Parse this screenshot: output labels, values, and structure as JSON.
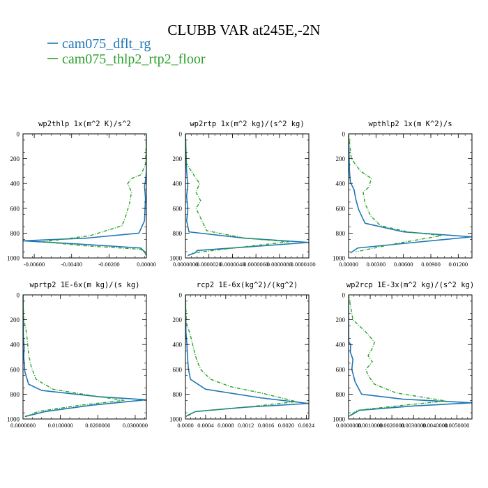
{
  "title": "CLUBB VAR at245E,-2N",
  "legend": [
    {
      "name": "cam075_dflt_rg",
      "color": "#1f77b4"
    },
    {
      "name": "cam075_thlp2_rtp2_floor",
      "color": "#2ca02c"
    }
  ],
  "chart_data": [
    {
      "type": "line",
      "title": "wp2thlp   1x(m^2 K)/s^2",
      "xlim": [
        -0.0066,
        0.0
      ],
      "ylim": [
        1000,
        0
      ],
      "xticks": [
        -0.006,
        -0.004,
        -0.002,
        0.0
      ],
      "xtick_labels": [
        "-0.00600",
        "-0.00400",
        "-0.00200",
        "0.00000"
      ],
      "yticks": [
        0,
        200,
        400,
        600,
        800,
        1000
      ],
      "ytick_labels": [
        "0",
        "200",
        "400",
        "600",
        "800",
        "1000"
      ],
      "series": [
        {
          "name": "cam075_dflt_rg",
          "color": "#1f77b4",
          "dashed": false,
          "x": [
            0,
            0,
            -5e-05,
            -0.0001,
            -5e-05,
            -0.0001,
            -0.0004,
            -0.0032,
            -0.0066,
            -0.0034,
            -0.0003,
            -0.0001,
            0
          ],
          "y": [
            0,
            300,
            380,
            420,
            520,
            700,
            800,
            840,
            862,
            890,
            920,
            950,
            980
          ]
        },
        {
          "name": "cam075_thlp2_rtp2_floor",
          "color": "#2ca02c",
          "dashed": true,
          "x": [
            0,
            -5e-05,
            -0.0003,
            -0.0008,
            -0.001,
            -0.0008,
            -0.0009,
            -0.0011,
            -0.0013,
            -0.003,
            -0.0055,
            -0.0035,
            -0.0003,
            0
          ],
          "y": [
            0,
            250,
            330,
            360,
            400,
            470,
            560,
            660,
            740,
            820,
            870,
            900,
            930,
            970
          ]
        }
      ]
    },
    {
      "type": "line",
      "title": "wp2rtp   1x(m^2 kg)/(s^2 kg)",
      "xlim": [
        0.0,
        1.05e-05
      ],
      "ylim": [
        1000,
        0
      ],
      "xticks": [
        0.0,
        2e-06,
        4e-06,
        6e-06,
        8e-06,
        1e-05
      ],
      "xtick_labels": [
        "0.0000000",
        "0.0000020",
        "0.0000040",
        "0.0000060",
        "0.0000080",
        "0.0000100"
      ],
      "yticks": [
        0,
        200,
        400,
        600,
        800,
        1000
      ],
      "ytick_labels": [
        "0",
        "200",
        "400",
        "600",
        "800",
        "1000"
      ],
      "series": [
        {
          "name": "cam075_dflt_rg",
          "color": "#1f77b4",
          "dashed": false,
          "x": [
            0,
            1e-07,
            2e-07,
            1e-07,
            2e-07,
            1e-07,
            3e-07,
            5e-06,
            1.05e-05,
            5.5e-06,
            1e-06,
            8e-07,
            2e-07
          ],
          "y": [
            0,
            300,
            420,
            500,
            620,
            700,
            790,
            840,
            875,
            910,
            940,
            960,
            980
          ]
        },
        {
          "name": "cam075_thlp2_rtp2_floor",
          "color": "#2ca02c",
          "dashed": true,
          "x": [
            0,
            1e-07,
            7e-07,
            1.2e-06,
            9e-07,
            1.3e-06,
            9e-07,
            1.3e-06,
            1.8e-06,
            5e-06,
            8.8e-06,
            5e-06,
            6e-07
          ],
          "y": [
            0,
            240,
            330,
            400,
            470,
            540,
            600,
            680,
            780,
            840,
            870,
            910,
            960
          ]
        }
      ]
    },
    {
      "type": "line",
      "title": "wpthlp2   1x(m K^2)/s",
      "xlim": [
        0.0,
        0.0135
      ],
      "ylim": [
        1000,
        0
      ],
      "xticks": [
        0.0,
        0.003,
        0.006,
        0.009,
        0.012
      ],
      "xtick_labels": [
        "0.00000",
        "0.00300",
        "0.00600",
        "0.00900",
        "0.01200"
      ],
      "yticks": [
        0,
        200,
        400,
        600,
        800,
        1000
      ],
      "ytick_labels": [
        "0",
        "200",
        "400",
        "600",
        "800",
        "1000"
      ],
      "series": [
        {
          "name": "cam075_dflt_rg",
          "color": "#1f77b4",
          "dashed": false,
          "x": [
            0,
            0.0001,
            0.0002,
            0.0006,
            0.0008,
            0.0011,
            0.0018,
            0.006,
            0.0135,
            0.0065,
            0.001,
            0.0002
          ],
          "y": [
            0,
            300,
            390,
            450,
            530,
            610,
            720,
            790,
            830,
            880,
            920,
            960
          ]
        },
        {
          "name": "cam075_thlp2_rtp2_floor",
          "color": "#2ca02c",
          "dashed": true,
          "x": [
            0,
            0.0003,
            0.0013,
            0.0025,
            0.0022,
            0.0016,
            0.0018,
            0.0024,
            0.0035,
            0.0065,
            0.0102,
            0.0055,
            0.0008
          ],
          "y": [
            0,
            200,
            300,
            360,
            430,
            470,
            560,
            660,
            740,
            790,
            820,
            880,
            950
          ]
        }
      ]
    },
    {
      "type": "line",
      "title": "wprtp2   1E-6x(m kg)/(s kg)",
      "xlim": [
        0.0,
        0.033
      ],
      "ylim": [
        1000,
        0
      ],
      "xticks": [
        0.0,
        0.01,
        0.02,
        0.03
      ],
      "xtick_labels": [
        "0.0000000",
        "0.0100000",
        "0.0200000",
        "0.0300000"
      ],
      "yticks": [
        0,
        200,
        400,
        600,
        800,
        1000
      ],
      "ytick_labels": [
        "0",
        "200",
        "400",
        "600",
        "800",
        "1000"
      ],
      "series": [
        {
          "name": "cam075_dflt_rg",
          "color": "#1f77b4",
          "dashed": false,
          "x": [
            0,
            0.0001,
            0.0003,
            0.0002,
            0.0005,
            0.0015,
            0.005,
            0.02,
            0.033,
            0.018,
            0.006,
            0.0005
          ],
          "y": [
            0,
            350,
            420,
            500,
            620,
            720,
            770,
            820,
            845,
            890,
            940,
            980
          ]
        },
        {
          "name": "cam075_thlp2_rtp2_floor",
          "color": "#2ca02c",
          "dashed": true,
          "x": [
            0,
            0.0002,
            0.0008,
            0.0012,
            0.0015,
            0.0022,
            0.0035,
            0.008,
            0.018,
            0.027,
            0.015,
            0.004,
            0.0005
          ],
          "y": [
            0,
            200,
            280,
            380,
            480,
            580,
            680,
            760,
            810,
            850,
            890,
            940,
            985
          ]
        }
      ]
    },
    {
      "type": "line",
      "title": "rcp2   1E-6x(kg^2)/(kg^2)",
      "xlim": [
        0.0,
        0.00245
      ],
      "ylim": [
        1000,
        0
      ],
      "xticks": [
        0.0,
        0.0004,
        0.0008,
        0.0012,
        0.0016,
        0.002,
        0.0024
      ],
      "xtick_labels": [
        "0.0000",
        "0.0004",
        "0.0008",
        "0.0012",
        "0.0016",
        "0.0020",
        "0.0024"
      ],
      "yticks": [
        0,
        200,
        400,
        600,
        800,
        1000
      ],
      "ytick_labels": [
        "0",
        "200",
        "400",
        "600",
        "800",
        "1000"
      ],
      "series": [
        {
          "name": "cam075_dflt_rg",
          "color": "#1f77b4",
          "dashed": false,
          "x": [
            0,
            1e-05,
            3e-05,
            4e-05,
            6e-05,
            0.0001,
            0.0004,
            0.0015,
            0.00245,
            0.0012,
            0.0002,
            2e-05
          ],
          "y": [
            0,
            300,
            400,
            500,
            600,
            680,
            760,
            830,
            875,
            905,
            940,
            975
          ]
        },
        {
          "name": "cam075_thlp2_rtp2_floor",
          "color": "#2ca02c",
          "dashed": true,
          "x": [
            0,
            2e-05,
            8e-05,
            0.00012,
            0.00016,
            0.00022,
            0.0003,
            0.0005,
            0.0009,
            0.0015,
            0.0022,
            0.0013,
            0.0002,
            0
          ],
          "y": [
            0,
            230,
            300,
            360,
            430,
            520,
            600,
            680,
            740,
            790,
            860,
            900,
            940,
            985
          ]
        }
      ]
    },
    {
      "type": "line",
      "title": "wp2rcp   1E-3x(m^2 kg)/(s^2 kg)",
      "xlim": [
        0.0,
        0.0057
      ],
      "ylim": [
        1000,
        0
      ],
      "xticks": [
        0.0,
        0.001,
        0.002,
        0.003,
        0.004,
        0.005
      ],
      "xtick_labels": [
        "0.0000000",
        "0.0010000",
        "0.0020000",
        "0.0030000",
        "0.0040000",
        "0.0050000"
      ],
      "yticks": [
        0,
        200,
        400,
        600,
        800,
        1000
      ],
      "ytick_labels": [
        "0",
        "200",
        "400",
        "600",
        "800",
        "1000"
      ],
      "series": [
        {
          "name": "cam075_dflt_rg",
          "color": "#1f77b4",
          "dashed": false,
          "x": [
            0,
            1e-05,
            0.0001,
            8e-05,
            0.0002,
            0.00015,
            0.0003,
            0.0006,
            0.0025,
            0.0057,
            0.003,
            0.0005,
            5e-05
          ],
          "y": [
            0,
            380,
            400,
            460,
            520,
            600,
            700,
            800,
            840,
            870,
            895,
            930,
            975
          ]
        },
        {
          "name": "cam075_thlp2_rtp2_floor",
          "color": "#2ca02c",
          "dashed": true,
          "x": [
            0,
            0.0002,
            0.0008,
            0.0012,
            0.0011,
            0.0009,
            0.0011,
            0.0008,
            0.0009,
            0.0012,
            0.0022,
            0.0045,
            0.0025,
            0.0004,
            0
          ],
          "y": [
            0,
            200,
            300,
            380,
            430,
            490,
            540,
            600,
            650,
            720,
            790,
            855,
            890,
            930,
            980
          ]
        }
      ]
    }
  ]
}
